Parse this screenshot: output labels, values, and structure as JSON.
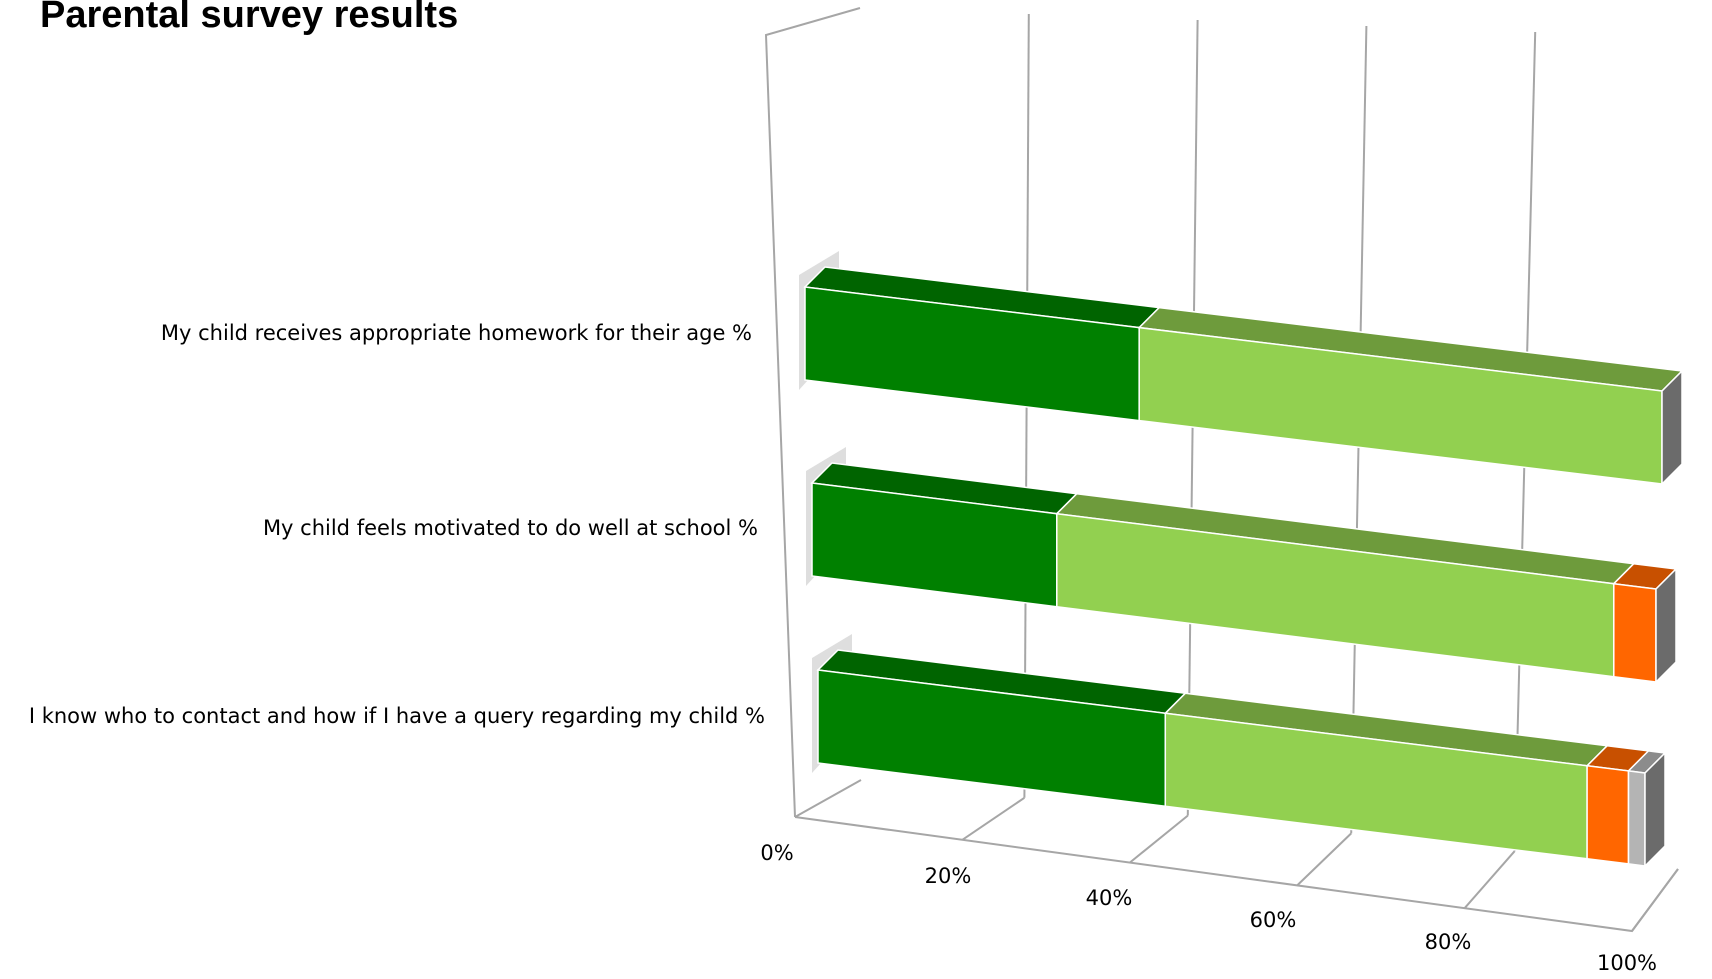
{
  "title": "Parental survey results",
  "chart_data": {
    "type": "bar",
    "orientation": "horizontal",
    "stacked": "percent",
    "three_d": true,
    "title": "Parental survey results",
    "xlabel": "",
    "ylabel": "",
    "xlim": [
      0,
      100
    ],
    "grid": true,
    "legend": "none",
    "categories": [
      "My child receives appropriate homework for their age %",
      "My child feels motivated to do well at school %",
      "I know who to contact and how if I have a query regarding my child %"
    ],
    "series": [
      {
        "color": "#008000",
        "top_color": "#006400",
        "values": [
          39,
          29,
          42
        ]
      },
      {
        "color": "#92d050",
        "top_color": "#6e9b3c",
        "values": [
          61,
          66,
          51
        ]
      },
      {
        "color": "#ff6600",
        "top_color": "#c85000",
        "values": [
          0,
          5,
          5
        ]
      },
      {
        "color": "#b4b4b4",
        "top_color": "#8c8c8c",
        "values": [
          0,
          0,
          2
        ]
      }
    ],
    "x_ticks": [
      "0%",
      "20%",
      "40%",
      "60%",
      "80%",
      "100%"
    ]
  }
}
